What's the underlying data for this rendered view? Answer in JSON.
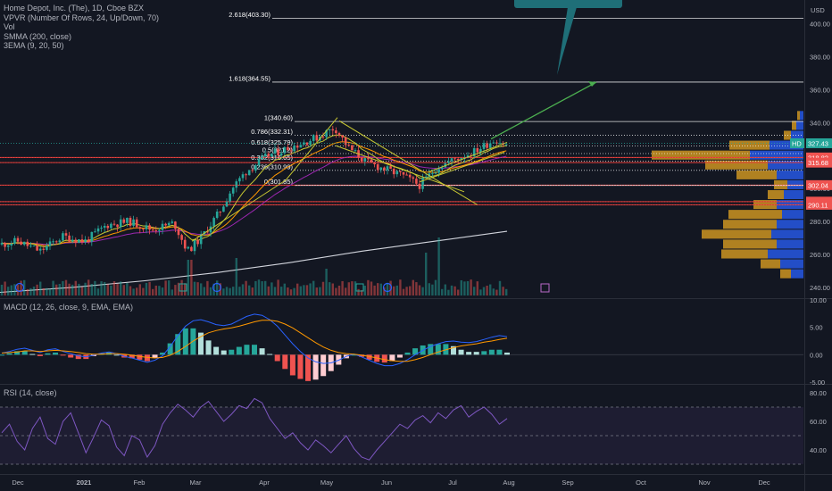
{
  "legend": {
    "title": "Home Depot, Inc. (The), 1D, Cboe BZX",
    "indicators": [
      "VPVR (Number Of Rows, 24, Up/Down, 70)",
      "Vol",
      "SMMA (200, close)",
      "3EMA (9, 20, 50)"
    ]
  },
  "currency": "USD",
  "macd_label": "MACD (12, 26, close, 9, EMA, EMA)",
  "rsi_label": "RSI (14, close)",
  "colors": {
    "background": "#131722",
    "up": "#26a69a",
    "down": "#ef5350",
    "fib": "#ffffff",
    "trend": "#c8c832",
    "arrow": "#4caf50",
    "macd": "#2962ff",
    "signal": "#ff9800",
    "rsi": "#7e57c2",
    "vpvr_up": "#2962ff",
    "vpvr_down": "#e5a521",
    "callout": "#1f6f78"
  },
  "chart_data": [
    {
      "type": "candlestick",
      "title": "Home Depot, Inc. (The), 1D, Cboe BZX",
      "ylim": [
        234,
        410
      ],
      "y_ticks": [
        240,
        260,
        280,
        300,
        320,
        340,
        360,
        380,
        400
      ],
      "x_ticks": [
        "Dec",
        "2021",
        "Feb",
        "Mar",
        "Apr",
        "May",
        "Jun",
        "Jul",
        "Aug",
        "Sep",
        "Oct",
        "Nov",
        "Dec"
      ],
      "price_levels": [
        {
          "label": "HD",
          "value": 327.43,
          "color": "#26a69a",
          "display": "327.43"
        },
        {
          "label": "",
          "value": 318.82,
          "color": "#ef5350",
          "display": "318.82"
        },
        {
          "label": "",
          "value": 315.68,
          "color": "#ef5350",
          "display": "315.68"
        },
        {
          "label": "",
          "value": 302.04,
          "color": "#ef5350",
          "display": "302.04"
        },
        {
          "label": "",
          "value": 292.02,
          "color": "#ef5350",
          "display": "292.02"
        },
        {
          "label": "",
          "value": 290.11,
          "color": "#ef5350",
          "display": "290.11"
        }
      ],
      "fib_levels": [
        {
          "label": "2.618(403.30)",
          "value": 403.3,
          "style": "solid"
        },
        {
          "label": "1.618(364.55)",
          "value": 364.55,
          "style": "solid"
        },
        {
          "label": "1(340.60)",
          "value": 340.6,
          "style": "solid"
        },
        {
          "label": "0.786(332.31)",
          "value": 332.31,
          "style": "dotted"
        },
        {
          "label": "0.618(325.79)",
          "value": 325.79,
          "style": "dotted"
        },
        {
          "label": "0.5(321.2)",
          "value": 321.2,
          "style": "dotted"
        },
        {
          "label": "0.382(316.65)",
          "value": 316.65,
          "style": "dotted"
        },
        {
          "label": "0.236(310.99)",
          "value": 310.99,
          "style": "dotted"
        },
        {
          "label": "0(301.85)",
          "value": 301.85,
          "style": "solid"
        }
      ],
      "smma200": {
        "name": "SMMA (200, close)",
        "values": [
          237,
          240,
          244,
          249,
          255,
          262,
          268,
          274
        ]
      },
      "volume_spikes": [
        "Mar",
        "Jul"
      ]
    },
    {
      "type": "macd",
      "title": "MACD (12, 26, close, 9, EMA, EMA)",
      "ylim": [
        -5,
        10
      ],
      "y_ticks": [
        10.0,
        5.0,
        0.0,
        -5.0
      ],
      "macd": [
        0.3,
        0.6,
        1.0,
        1.2,
        0.8,
        0.4,
        0.9,
        1.1,
        0.6,
        0.2,
        -0.2,
        -0.4,
        -0.1,
        0.3,
        0.5,
        0.2,
        -0.3,
        -0.6,
        -1.0,
        -1.4,
        -1.0,
        -0.2,
        1.5,
        3.5,
        5.2,
        6.2,
        6.4,
        6.0,
        5.5,
        5.3,
        5.6,
        6.3,
        7.0,
        7.4,
        7.2,
        6.4,
        5.2,
        3.6,
        2.0,
        0.6,
        -0.6,
        -1.3,
        -1.6,
        -1.5,
        -1.0,
        -0.3,
        0.1,
        -0.4,
        -1.0,
        -1.6,
        -2.0,
        -2.0,
        -1.6,
        -0.9,
        0.0,
        0.8,
        1.5,
        2.0,
        2.4,
        2.5,
        2.3,
        2.2,
        2.4,
        2.8,
        3.2,
        3.5,
        3.3
      ],
      "signal": [
        0.3,
        0.4,
        0.5,
        0.7,
        0.7,
        0.6,
        0.7,
        0.8,
        0.7,
        0.6,
        0.4,
        0.2,
        0.1,
        0.1,
        0.2,
        0.2,
        0.1,
        -0.1,
        -0.3,
        -0.5,
        -0.6,
        -0.5,
        -0.1,
        0.6,
        1.5,
        2.5,
        3.3,
        4.0,
        4.4,
        4.7,
        4.9,
        5.2,
        5.6,
        6.0,
        6.3,
        6.3,
        6.1,
        5.6,
        4.9,
        4.0,
        3.1,
        2.2,
        1.4,
        0.8,
        0.4,
        0.2,
        0.1,
        -0.1,
        -0.3,
        -0.6,
        -0.9,
        -1.1,
        -1.2,
        -1.2,
        -0.9,
        -0.5,
        0.0,
        0.5,
        0.9,
        1.3,
        1.6,
        1.8,
        2.0,
        2.3,
        2.5,
        2.8,
        3.0
      ]
    },
    {
      "type": "line",
      "title": "RSI (14, close)",
      "ylim": [
        25,
        85
      ],
      "y_ticks": [
        80.0,
        60.0,
        40.0
      ],
      "band": [
        30,
        70
      ],
      "midline": 50,
      "values": [
        52,
        58,
        46,
        40,
        55,
        63,
        48,
        44,
        60,
        66,
        52,
        38,
        49,
        61,
        57,
        42,
        36,
        50,
        47,
        35,
        43,
        58,
        66,
        72,
        68,
        63,
        70,
        74,
        67,
        60,
        65,
        71,
        69,
        76,
        73,
        62,
        55,
        48,
        52,
        45,
        40,
        47,
        43,
        38,
        44,
        50,
        41,
        35,
        33,
        40,
        46,
        52,
        58,
        55,
        61,
        64,
        59,
        66,
        62,
        68,
        71,
        63,
        67,
        70,
        65,
        58,
        62
      ]
    }
  ]
}
